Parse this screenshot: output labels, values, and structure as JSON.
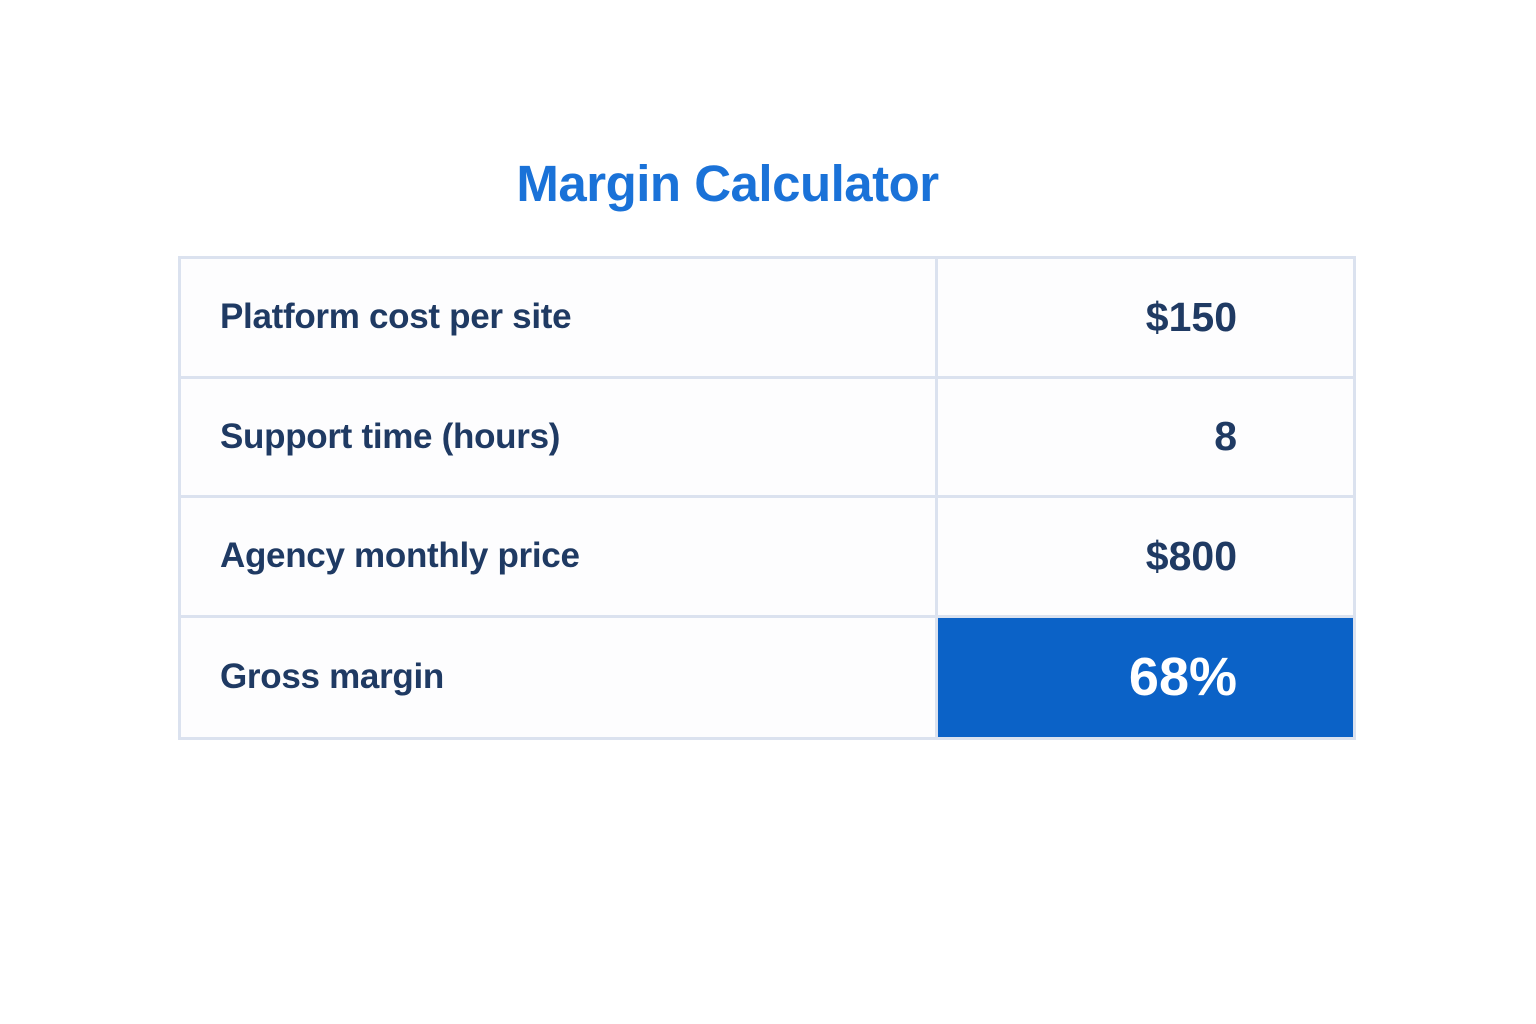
{
  "title": "Margin Calculator",
  "colors": {
    "title_blue": "#1a72d8",
    "text_navy": "#1f3a63",
    "highlight_bg": "#0b62c7",
    "highlight_text": "#ffffff",
    "table_border": "#dbe2ef",
    "page_background": "#ffffff"
  },
  "table": {
    "rows": [
      {
        "label": "Platform cost per site",
        "value": "$150",
        "highlighted": false
      },
      {
        "label": "Support time (hours)",
        "value": "8",
        "highlighted": false
      },
      {
        "label": "Agency monthly price",
        "value": "$800",
        "highlighted": false
      },
      {
        "label": "Gross margin",
        "value": "68%",
        "highlighted": true
      }
    ]
  }
}
